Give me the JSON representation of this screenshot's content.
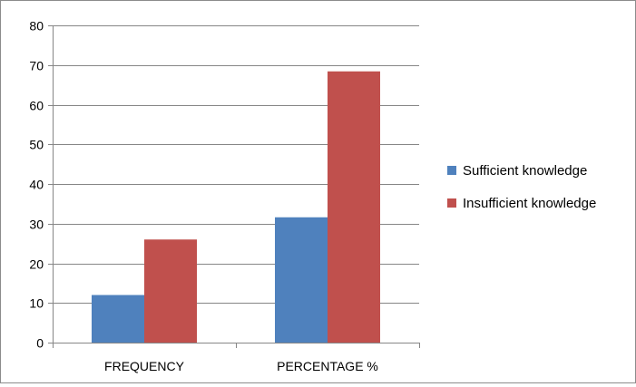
{
  "chart_data": {
    "type": "bar",
    "categories": [
      "FREQUENCY",
      "PERCENTAGE %"
    ],
    "series": [
      {
        "name": "Sufficient knowledge",
        "values": [
          12,
          31.6
        ],
        "color": "#4f81bd"
      },
      {
        "name": "Insufficient knowledge",
        "values": [
          26,
          68.4
        ],
        "color": "#c0504d"
      }
    ],
    "ylim": [
      0,
      80
    ],
    "yticks": [
      0,
      10,
      20,
      30,
      40,
      50,
      60,
      70,
      80
    ],
    "grid": true,
    "legend_position": "right"
  }
}
